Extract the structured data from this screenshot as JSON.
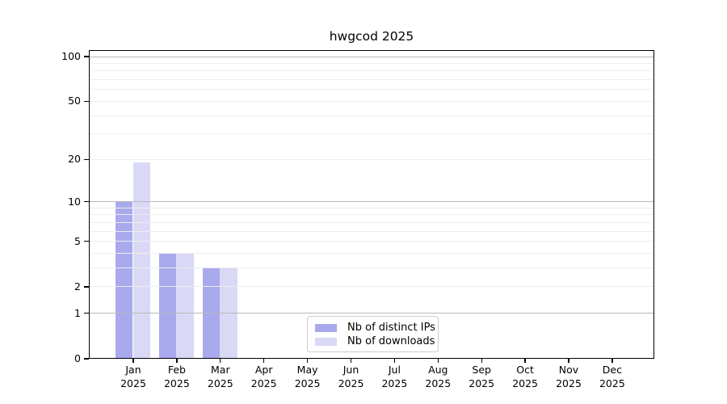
{
  "figure": {
    "background": "#ffffff"
  },
  "chart_data": {
    "type": "bar",
    "title": "hwgcod 2025",
    "categories": [
      "Jan",
      "Feb",
      "Mar",
      "Apr",
      "May",
      "Jun",
      "Jul",
      "Aug",
      "Sep",
      "Oct",
      "Nov",
      "Dec"
    ],
    "category_year": "2025",
    "series": [
      {
        "name": "Nb of distinct IPs",
        "color": "#a9a9ee",
        "values": [
          10,
          4,
          3,
          0,
          0,
          0,
          0,
          0,
          0,
          0,
          0,
          0
        ]
      },
      {
        "name": "Nb of downloads",
        "color": "#d9d9f6",
        "values": [
          19,
          4,
          3,
          0,
          0,
          0,
          0,
          0,
          0,
          0,
          0,
          0
        ]
      }
    ],
    "xlabel": "",
    "ylabel": "",
    "yscale": "log(1+v)",
    "ylim": [
      0,
      110
    ],
    "yticks": [
      0,
      1,
      2,
      5,
      10,
      20,
      50,
      100
    ],
    "grid": {
      "orientation": "horizontal",
      "major_values": [
        1,
        10,
        100
      ],
      "minor_values": [
        2,
        3,
        4,
        5,
        6,
        7,
        8,
        9,
        20,
        30,
        40,
        50,
        60,
        70,
        80,
        90
      ]
    },
    "legend_position": "lower center, inside axes"
  }
}
